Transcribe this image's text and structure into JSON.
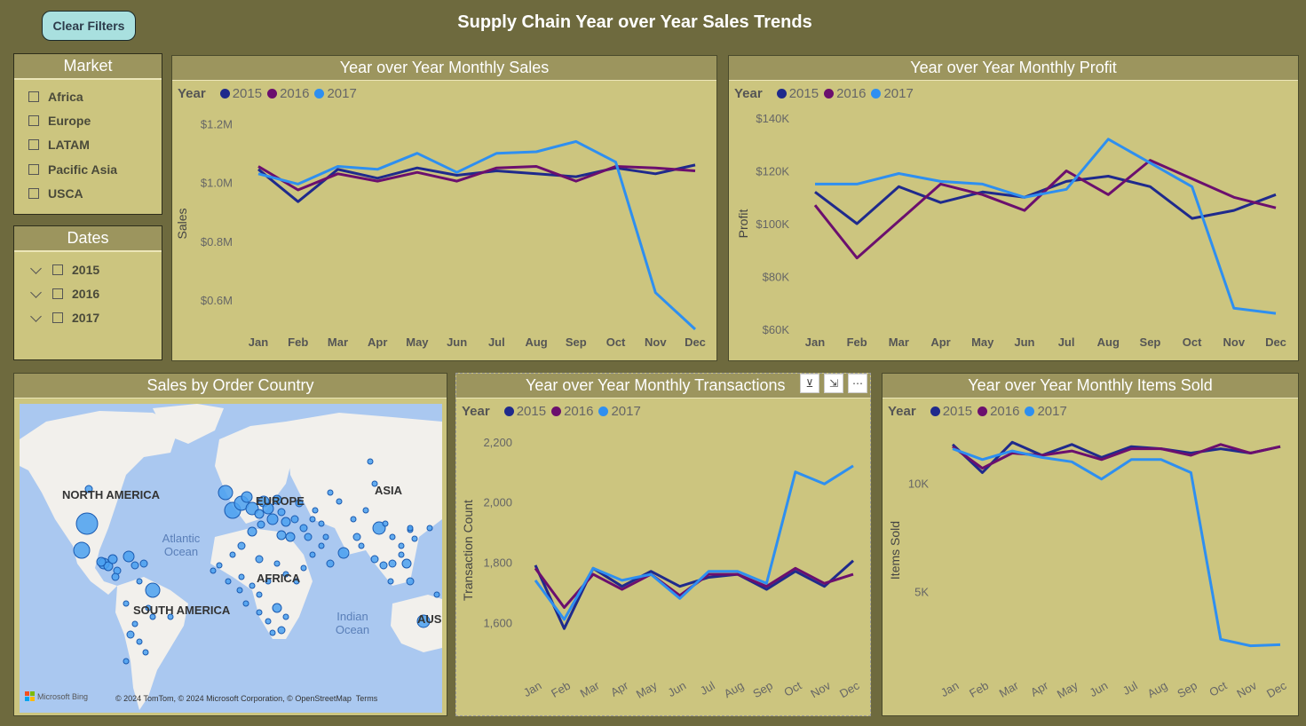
{
  "toolbar": {
    "clear_label": "Clear Filters"
  },
  "page_title": "Supply Chain Year over Year Sales Trends",
  "colors": {
    "y2015": "#1f2a8c",
    "y2016": "#6b0f6e",
    "y2017": "#2e8ff0",
    "card_bg": "#ccc57f",
    "header_bg": "#9c955e",
    "page_bg": "#6e6a3e"
  },
  "market_slicer": {
    "title": "Market",
    "items": [
      "Africa",
      "Europe",
      "LATAM",
      "Pacific Asia",
      "USCA"
    ]
  },
  "dates_slicer": {
    "title": "Dates",
    "items": [
      "2015",
      "2016",
      "2017"
    ]
  },
  "legend": {
    "label": "Year",
    "years": [
      "2015",
      "2016",
      "2017"
    ]
  },
  "map": {
    "title": "Sales by Order Country",
    "labels": {
      "na": "NORTH AMERICA",
      "eu": "EUROPE",
      "asia": "ASIA",
      "af": "AFRICA",
      "sa": "SOUTH AMERICA",
      "aus": "AUS"
    },
    "oceans": {
      "atlantic": "Atlantic Ocean",
      "indian": "Indian Ocean"
    },
    "attribution": "© 2024 TomTom, © 2024 Microsoft Corporation, © OpenStreetMap  Terms",
    "brand": "Microsoft Bing"
  },
  "visual_tools": {
    "filter": "filter-icon",
    "focus": "focus-icon",
    "more": "more-options-icon"
  },
  "chart_data": [
    {
      "type": "line",
      "title": "Year over Year Monthly Sales",
      "ylabel": "Sales",
      "xlabel": "",
      "categories": [
        "Jan",
        "Feb",
        "Mar",
        "Apr",
        "May",
        "Jun",
        "Jul",
        "Aug",
        "Sep",
        "Oct",
        "Nov",
        "Dec"
      ],
      "y_ticks": [
        "$0.6M",
        "$0.8M",
        "$1.0M",
        "$1.2M"
      ],
      "y_tick_values": [
        0.6,
        0.8,
        1.0,
        1.2
      ],
      "ylim": [
        0.5,
        1.22
      ],
      "series": [
        {
          "name": "2015",
          "values": [
            1.045,
            0.935,
            1.045,
            1.015,
            1.05,
            1.025,
            1.04,
            1.03,
            1.02,
            1.05,
            1.03,
            1.06
          ]
        },
        {
          "name": "2016",
          "values": [
            1.055,
            0.975,
            1.03,
            1.005,
            1.035,
            1.005,
            1.05,
            1.055,
            1.005,
            1.055,
            1.05,
            1.04
          ]
        },
        {
          "name": "2017",
          "values": [
            1.03,
            0.995,
            1.055,
            1.045,
            1.1,
            1.035,
            1.1,
            1.105,
            1.14,
            1.07,
            0.625,
            0.5
          ]
        }
      ]
    },
    {
      "type": "line",
      "title": "Year over Year Monthly Profit",
      "ylabel": "Profit",
      "xlabel": "",
      "categories": [
        "Jan",
        "Feb",
        "Mar",
        "Apr",
        "May",
        "Jun",
        "Jul",
        "Aug",
        "Sep",
        "Oct",
        "Nov",
        "Dec"
      ],
      "y_ticks": [
        "$60K",
        "$80K",
        "$100K",
        "$120K",
        "$140K"
      ],
      "y_tick_values": [
        60,
        80,
        100,
        120,
        140
      ],
      "ylim": [
        60,
        140
      ],
      "series": [
        {
          "name": "2015",
          "values": [
            112,
            100,
            114,
            108,
            112,
            110,
            116,
            118,
            114,
            102,
            105,
            111
          ]
        },
        {
          "name": "2016",
          "values": [
            107,
            87,
            101,
            115,
            111,
            105,
            120,
            111,
            124,
            117,
            110,
            106
          ]
        },
        {
          "name": "2017",
          "values": [
            115,
            115,
            119,
            116,
            115,
            110,
            113,
            132,
            123,
            114,
            68,
            66
          ]
        }
      ]
    },
    {
      "type": "line",
      "title": "Year over Year Monthly Transactions",
      "ylabel": "Transaction Count",
      "xlabel": "",
      "categories": [
        "Jan",
        "Feb",
        "Mar",
        "Apr",
        "May",
        "Jun",
        "Jul",
        "Aug",
        "Sep",
        "Oct",
        "Nov",
        "Dec"
      ],
      "y_ticks": [
        "1,600",
        "1,800",
        "2,000",
        "2,200"
      ],
      "y_tick_values": [
        1600,
        1800,
        2000,
        2200
      ],
      "ylim": [
        1560,
        2220
      ],
      "series": [
        {
          "name": "2015",
          "values": [
            1790,
            1580,
            1780,
            1720,
            1770,
            1720,
            1750,
            1760,
            1710,
            1770,
            1720,
            1805
          ]
        },
        {
          "name": "2016",
          "values": [
            1780,
            1650,
            1760,
            1710,
            1760,
            1690,
            1760,
            1760,
            1720,
            1780,
            1730,
            1760
          ]
        },
        {
          "name": "2017",
          "values": [
            1740,
            1610,
            1780,
            1740,
            1760,
            1680,
            1770,
            1770,
            1730,
            2100,
            2060,
            2120
          ]
        }
      ]
    },
    {
      "type": "line",
      "title": "Year over Year Monthly Items Sold",
      "ylabel": "Items Sold",
      "xlabel": "",
      "categories": [
        "Jan",
        "Feb",
        "Mar",
        "Apr",
        "May",
        "Jun",
        "Jul",
        "Aug",
        "Sep",
        "Oct",
        "Nov",
        "Dec"
      ],
      "y_ticks": [
        "5K",
        "10K"
      ],
      "y_tick_values": [
        5000,
        10000
      ],
      "ylim": [
        1500,
        12200
      ],
      "series": [
        {
          "name": "2015",
          "values": [
            11800,
            10500,
            11900,
            11300,
            11800,
            11200,
            11700,
            11600,
            11400,
            11600,
            11400,
            11700
          ]
        },
        {
          "name": "2016",
          "values": [
            11700,
            10700,
            11400,
            11300,
            11500,
            11100,
            11600,
            11600,
            11300,
            11800,
            11400,
            11700
          ]
        },
        {
          "name": "2017",
          "values": [
            11600,
            11100,
            11500,
            11200,
            11000,
            10200,
            11100,
            11100,
            10500,
            2800,
            2500,
            2550
          ]
        }
      ]
    }
  ]
}
